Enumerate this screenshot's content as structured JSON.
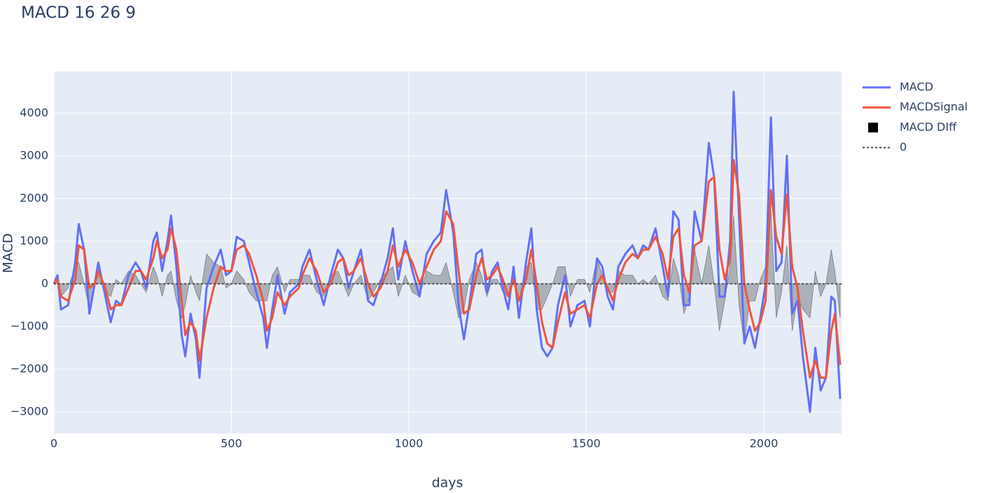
{
  "chart_data": {
    "type": "line",
    "title": "MACD 16 26 9",
    "x_label": "days",
    "y_label": "MACD",
    "x": [
      0,
      10,
      20,
      40,
      60,
      70,
      85,
      100,
      115,
      125,
      145,
      160,
      175,
      190,
      210,
      230,
      245,
      260,
      280,
      290,
      305,
      320,
      330,
      345,
      360,
      370,
      385,
      400,
      410,
      430,
      450,
      470,
      485,
      500,
      515,
      535,
      550,
      570,
      590,
      600,
      615,
      630,
      650,
      665,
      690,
      700,
      720,
      740,
      760,
      780,
      800,
      815,
      830,
      845,
      865,
      885,
      900,
      920,
      940,
      955,
      970,
      990,
      1010,
      1030,
      1050,
      1070,
      1090,
      1105,
      1125,
      1140,
      1155,
      1170,
      1190,
      1205,
      1220,
      1235,
      1250,
      1265,
      1280,
      1295,
      1310,
      1330,
      1345,
      1360,
      1375,
      1390,
      1405,
      1420,
      1440,
      1455,
      1475,
      1495,
      1510,
      1530,
      1545,
      1560,
      1575,
      1590,
      1610,
      1630,
      1645,
      1660,
      1675,
      1695,
      1715,
      1730,
      1745,
      1760,
      1775,
      1790,
      1805,
      1825,
      1845,
      1860,
      1875,
      1890,
      1905,
      1915,
      1930,
      1945,
      1960,
      1975,
      1990,
      2005,
      2020,
      2035,
      2050,
      2065,
      2080,
      2095,
      2110,
      2130,
      2145,
      2160,
      2175,
      2190,
      2200,
      2215
    ],
    "series": [
      {
        "name": "MACD",
        "color": "#636efa",
        "width": 3,
        "values": [
          0,
          200,
          -600,
          -500,
          500,
          1400,
          800,
          -700,
          0,
          500,
          -300,
          -900,
          -400,
          -500,
          200,
          500,
          300,
          -100,
          1000,
          1200,
          300,
          1000,
          1600,
          400,
          -1200,
          -1700,
          -700,
          -1300,
          -2200,
          -100,
          400,
          800,
          200,
          300,
          1100,
          1000,
          500,
          -200,
          -800,
          -1500,
          -600,
          200,
          -700,
          -200,
          0,
          400,
          800,
          100,
          -500,
          200,
          800,
          600,
          -100,
          300,
          800,
          -400,
          -500,
          0,
          600,
          1300,
          100,
          1000,
          300,
          -300,
          700,
          1000,
          1200,
          2200,
          1200,
          -500,
          -1300,
          -500,
          700,
          800,
          -200,
          300,
          500,
          -100,
          -600,
          400,
          -800,
          500,
          1300,
          -600,
          -1500,
          -1700,
          -1500,
          -500,
          200,
          -1000,
          -500,
          -400,
          -1000,
          600,
          400,
          -300,
          -600,
          400,
          700,
          900,
          600,
          900,
          800,
          1300,
          400,
          -300,
          1700,
          1500,
          -500,
          -500,
          1700,
          1000,
          3300,
          2500,
          -300,
          -300,
          1000,
          4500,
          1600,
          -1400,
          -1000,
          -1500,
          -800,
          0,
          3900,
          300,
          500,
          3000,
          -700,
          -400,
          -1700,
          -3000,
          -1500,
          -2500,
          -2200,
          -300,
          -400,
          -2700
        ]
      },
      {
        "name": "MACDSignal",
        "color": "#ef553b",
        "width": 3,
        "values": [
          0,
          100,
          -300,
          -400,
          100,
          900,
          800,
          -100,
          0,
          300,
          -100,
          -600,
          -500,
          -500,
          -100,
          300,
          300,
          100,
          600,
          1000,
          600,
          800,
          1300,
          800,
          -400,
          -1200,
          -900,
          -1100,
          -1800,
          -800,
          -100,
          400,
          300,
          300,
          800,
          900,
          700,
          200,
          -400,
          -1100,
          -800,
          -200,
          -500,
          -300,
          -100,
          200,
          600,
          300,
          -200,
          0,
          500,
          600,
          200,
          300,
          600,
          0,
          -300,
          -100,
          300,
          900,
          400,
          800,
          500,
          0,
          400,
          800,
          1000,
          1700,
          1400,
          300,
          -700,
          -600,
          200,
          600,
          100,
          200,
          400,
          100,
          -300,
          100,
          -400,
          100,
          800,
          0,
          -900,
          -1400,
          -1500,
          -900,
          -200,
          -700,
          -600,
          -500,
          -800,
          0,
          200,
          -100,
          -400,
          100,
          500,
          700,
          600,
          800,
          800,
          1100,
          700,
          100,
          1100,
          1300,
          200,
          -200,
          900,
          1000,
          2400,
          2500,
          800,
          100,
          600,
          2900,
          2100,
          0,
          -600,
          -1100,
          -900,
          -400,
          2200,
          1100,
          700,
          2100,
          400,
          -100,
          -1100,
          -2200,
          -1800,
          -2200,
          -2200,
          -1100,
          -700,
          -1900
        ]
      },
      {
        "name": "MACD DIff",
        "color": "#000000",
        "fill": true,
        "values": [
          0,
          100,
          -300,
          -100,
          400,
          500,
          0,
          -600,
          0,
          200,
          -200,
          -300,
          100,
          0,
          300,
          200,
          0,
          -200,
          400,
          200,
          -300,
          200,
          300,
          -400,
          -800,
          -500,
          200,
          -200,
          -400,
          700,
          500,
          400,
          -100,
          0,
          300,
          100,
          -200,
          -400,
          -400,
          -400,
          200,
          400,
          -200,
          100,
          100,
          200,
          200,
          -200,
          -300,
          200,
          300,
          0,
          -300,
          0,
          200,
          -400,
          -200,
          100,
          300,
          400,
          -300,
          200,
          -200,
          -300,
          300,
          200,
          200,
          500,
          -200,
          -800,
          -600,
          100,
          500,
          200,
          -300,
          100,
          100,
          -200,
          -300,
          300,
          -400,
          400,
          500,
          -600,
          -600,
          -300,
          0,
          400,
          400,
          -300,
          100,
          100,
          -200,
          600,
          200,
          -200,
          -200,
          300,
          200,
          200,
          0,
          100,
          0,
          200,
          -300,
          -400,
          600,
          200,
          -700,
          -300,
          800,
          0,
          900,
          0,
          -1100,
          -400,
          400,
          1600,
          -500,
          -1400,
          -400,
          -400,
          100,
          400,
          1700,
          -800,
          -200,
          900,
          -1100,
          -300,
          -600,
          -800,
          300,
          -300,
          0,
          800,
          300,
          -800
        ]
      }
    ],
    "hline": {
      "name": "0",
      "value": 0,
      "color": "#555555",
      "dash": true
    },
    "xlim": [
      0,
      2219
    ],
    "ylim": [
      -3510,
      4980
    ],
    "xticks": [
      0,
      500,
      1000,
      1500,
      2000
    ],
    "yticks": [
      {
        "value": -3000,
        "label": "−3000"
      },
      {
        "value": -2000,
        "label": "−2000"
      },
      {
        "value": -1000,
        "label": "−1000"
      },
      0,
      1000,
      2000,
      3000,
      4000
    ],
    "grid": true
  }
}
